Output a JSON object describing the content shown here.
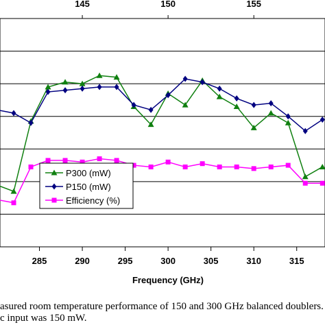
{
  "chart_data": {
    "type": "line",
    "xlabel": "Frequency (GHz)",
    "x": [
      280,
      282,
      284,
      286,
      288,
      290,
      292,
      294,
      296,
      298,
      300,
      302,
      304,
      306,
      308,
      310,
      312,
      314,
      316,
      318
    ],
    "x_ticks": [
      "285",
      "290",
      "295",
      "300",
      "305",
      "310",
      "315"
    ],
    "x_tick_values": [
      285,
      290,
      295,
      300,
      305,
      310,
      315
    ],
    "top_ticks": [
      "145",
      "150",
      "155"
    ],
    "top_tick_values": [
      290,
      300,
      310
    ],
    "xlim": [
      280.4,
      318.3
    ],
    "ylim": [
      0,
      7
    ],
    "grid": "horizontal",
    "legend_position": "bottom-left",
    "series": [
      {
        "name": "P300 (mW)",
        "marker": "triangle",
        "color": "#108010",
        "values": [
          1.9,
          1.7,
          3.85,
          4.9,
          5.05,
          5.0,
          5.25,
          5.2,
          4.3,
          3.75,
          4.7,
          4.35,
          5.1,
          4.6,
          4.3,
          3.65,
          4.1,
          3.8,
          2.15,
          2.45
        ]
      },
      {
        "name": "P150 (mW)",
        "marker": "diamond",
        "color": "#000080",
        "values": [
          4.2,
          4.1,
          3.8,
          4.75,
          4.8,
          4.85,
          4.9,
          4.9,
          4.35,
          4.2,
          4.65,
          5.15,
          5.05,
          4.85,
          4.55,
          4.35,
          4.4,
          4.0,
          3.55,
          3.9
        ]
      },
      {
        "name": "Efficiency (%)",
        "marker": "square",
        "color": "#ff00ff",
        "values": [
          1.45,
          1.35,
          2.45,
          2.65,
          2.65,
          2.6,
          2.7,
          2.65,
          2.5,
          2.45,
          2.6,
          2.45,
          2.55,
          2.45,
          2.45,
          2.4,
          2.45,
          2.5,
          1.95,
          1.95
        ]
      }
    ]
  },
  "caption": {
    "line1": "asured room temperature performance of 150 and 300 GHz balanced doublers.",
    "line2": "c input was 150 mW."
  }
}
